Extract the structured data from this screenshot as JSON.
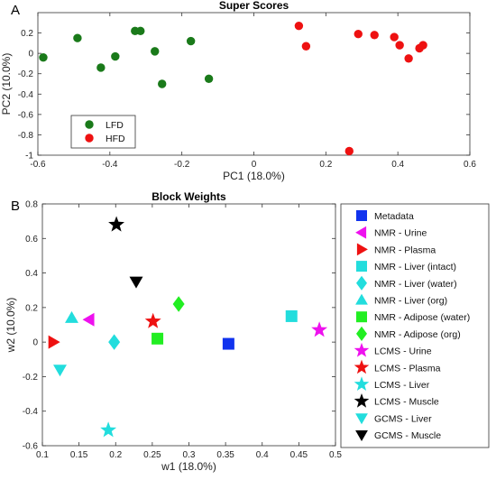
{
  "chart_data": [
    {
      "panel": "A",
      "type": "scatter",
      "title": "Super Scores",
      "xlabel": "PC1 (18.0%)",
      "ylabel": "PC2 (10.0%)",
      "xlim": [
        -0.6,
        0.6
      ],
      "ylim": [
        -1,
        0.4
      ],
      "xticks": [
        "-0.6",
        "-0.4",
        "-0.2",
        "0",
        "0.2",
        "0.4",
        "0.6"
      ],
      "yticks": [
        "-1",
        "-0.8",
        "-0.6",
        "-0.4",
        "-0.2",
        "0",
        "0.2"
      ],
      "legend_position": "bottom-left",
      "series": [
        {
          "name": "LFD",
          "color": "#1a7a1a",
          "points": [
            [
              -0.585,
              -0.04
            ],
            [
              -0.49,
              0.15
            ],
            [
              -0.425,
              -0.14
            ],
            [
              -0.385,
              -0.03
            ],
            [
              -0.33,
              0.22
            ],
            [
              -0.315,
              0.22
            ],
            [
              -0.275,
              0.02
            ],
            [
              -0.255,
              -0.3
            ],
            [
              -0.175,
              0.12
            ],
            [
              -0.125,
              -0.25
            ]
          ]
        },
        {
          "name": "HFD",
          "color": "#ee1111",
          "points": [
            [
              0.125,
              0.27
            ],
            [
              0.145,
              0.07
            ],
            [
              0.265,
              -0.96
            ],
            [
              0.29,
              0.19
            ],
            [
              0.335,
              0.18
            ],
            [
              0.39,
              0.16
            ],
            [
              0.405,
              0.08
            ],
            [
              0.43,
              -0.05
            ],
            [
              0.46,
              0.05
            ],
            [
              0.47,
              0.08
            ]
          ]
        }
      ]
    },
    {
      "panel": "B",
      "type": "scatter",
      "title": "Block Weights",
      "xlabel": "w1 (18.0%)",
      "ylabel": "w2 (10.0%)",
      "xlim": [
        0.1,
        0.5
      ],
      "ylim": [
        -0.6,
        0.8
      ],
      "xticks": [
        "0.1",
        "0.15",
        "0.2",
        "0.25",
        "0.3",
        "0.35",
        "0.4",
        "0.45",
        "0.5"
      ],
      "yticks": [
        "-0.6",
        "-0.4",
        "-0.2",
        "0",
        "0.2",
        "0.4",
        "0.6",
        "0.8"
      ],
      "legend_position": "outside-right",
      "series": [
        {
          "name": "Metadata",
          "marker": "square",
          "color": "#1133ee",
          "x": 0.354,
          "y": -0.01
        },
        {
          "name": "NMR - Urine",
          "marker": "triangle-left",
          "color": "#ee11ee",
          "x": 0.164,
          "y": 0.13
        },
        {
          "name": "NMR - Plasma",
          "marker": "triangle-right",
          "color": "#ee1111",
          "x": 0.115,
          "y": 0.0
        },
        {
          "name": "NMR - Liver (intact)",
          "marker": "square",
          "color": "#22dddd",
          "x": 0.44,
          "y": 0.15
        },
        {
          "name": "NMR - Liver (water)",
          "marker": "diamond",
          "color": "#22dddd",
          "x": 0.198,
          "y": 0.0
        },
        {
          "name": "NMR - Liver (org)",
          "marker": "triangle-up",
          "color": "#22dddd",
          "x": 0.14,
          "y": 0.14
        },
        {
          "name": "NMR - Adipose (water)",
          "marker": "square",
          "color": "#22ee22",
          "x": 0.257,
          "y": 0.02
        },
        {
          "name": "NMR - Adipose (org)",
          "marker": "diamond",
          "color": "#22ee22",
          "x": 0.286,
          "y": 0.22
        },
        {
          "name": "LCMS - Urine",
          "marker": "star",
          "color": "#ee11ee",
          "x": 0.478,
          "y": 0.07
        },
        {
          "name": "LCMS - Plasma",
          "marker": "star",
          "color": "#ee1111",
          "x": 0.251,
          "y": 0.12
        },
        {
          "name": "LCMS - Liver",
          "marker": "star",
          "color": "#22dddd",
          "x": 0.19,
          "y": -0.51
        },
        {
          "name": "LCMS - Muscle",
          "marker": "star",
          "color": "#000000",
          "x": 0.201,
          "y": 0.68
        },
        {
          "name": "GCMS - Liver",
          "marker": "triangle-down",
          "color": "#22dddd",
          "x": 0.124,
          "y": -0.16
        },
        {
          "name": "GCMS - Muscle",
          "marker": "triangle-down",
          "color": "#000000",
          "x": 0.228,
          "y": 0.35
        }
      ]
    }
  ]
}
